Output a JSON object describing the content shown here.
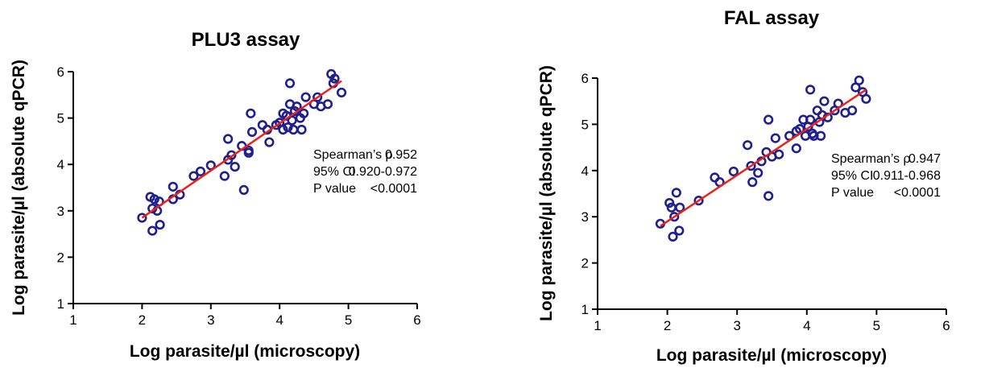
{
  "chart_data": [
    {
      "type": "scatter",
      "title": "PLU3 assay",
      "xlabel": "Log parasite/µl (microscopy)",
      "ylabel": "Log parasite/µl (absolute qPCR)",
      "xlim": [
        1,
        6
      ],
      "ylim": [
        1,
        6
      ],
      "xticks": [
        "1",
        "2",
        "3",
        "4",
        "5",
        "6"
      ],
      "yticks": [
        "1",
        "2",
        "3",
        "4",
        "5",
        "6"
      ],
      "grid": false,
      "colors": {
        "points": "#1f1f8f",
        "fit": "#e8231c"
      },
      "fit_line": {
        "x": [
          2.0,
          4.9
        ],
        "y": [
          2.85,
          5.8
        ]
      },
      "stats": [
        {
          "label": "Spearman’s ρ",
          "value": "0.952"
        },
        {
          "label": "95% CI",
          "value": "0.920-0.972"
        },
        {
          "label": "P value",
          "value": "<0.0001"
        }
      ],
      "points": [
        {
          "x": 2.0,
          "y": 2.85
        },
        {
          "x": 2.12,
          "y": 3.3
        },
        {
          "x": 2.18,
          "y": 3.25
        },
        {
          "x": 2.15,
          "y": 3.05
        },
        {
          "x": 2.25,
          "y": 3.2
        },
        {
          "x": 2.22,
          "y": 3.0
        },
        {
          "x": 2.15,
          "y": 2.57
        },
        {
          "x": 2.26,
          "y": 2.7
        },
        {
          "x": 2.45,
          "y": 3.52
        },
        {
          "x": 2.45,
          "y": 3.25
        },
        {
          "x": 2.55,
          "y": 3.35
        },
        {
          "x": 2.75,
          "y": 3.75
        },
        {
          "x": 2.85,
          "y": 3.85
        },
        {
          "x": 3.0,
          "y": 3.98
        },
        {
          "x": 3.2,
          "y": 3.75
        },
        {
          "x": 3.25,
          "y": 4.1
        },
        {
          "x": 3.25,
          "y": 4.55
        },
        {
          "x": 3.3,
          "y": 4.2
        },
        {
          "x": 3.35,
          "y": 3.95
        },
        {
          "x": 3.45,
          "y": 4.4
        },
        {
          "x": 3.48,
          "y": 3.45
        },
        {
          "x": 3.55,
          "y": 4.3
        },
        {
          "x": 3.55,
          "y": 4.25
        },
        {
          "x": 3.58,
          "y": 5.1
        },
        {
          "x": 3.6,
          "y": 4.7
        },
        {
          "x": 3.75,
          "y": 4.85
        },
        {
          "x": 3.82,
          "y": 4.75
        },
        {
          "x": 3.85,
          "y": 4.48
        },
        {
          "x": 3.95,
          "y": 4.85
        },
        {
          "x": 4.0,
          "y": 4.9
        },
        {
          "x": 4.05,
          "y": 5.1
        },
        {
          "x": 4.05,
          "y": 4.75
        },
        {
          "x": 4.1,
          "y": 5.05
        },
        {
          "x": 4.12,
          "y": 4.8
        },
        {
          "x": 4.15,
          "y": 5.75
        },
        {
          "x": 4.15,
          "y": 5.3
        },
        {
          "x": 4.18,
          "y": 4.95
        },
        {
          "x": 4.2,
          "y": 4.75
        },
        {
          "x": 4.22,
          "y": 5.15
        },
        {
          "x": 4.25,
          "y": 5.25
        },
        {
          "x": 4.3,
          "y": 5.0
        },
        {
          "x": 4.32,
          "y": 4.75
        },
        {
          "x": 4.35,
          "y": 5.1
        },
        {
          "x": 4.38,
          "y": 5.45
        },
        {
          "x": 4.5,
          "y": 5.3
        },
        {
          "x": 4.55,
          "y": 5.45
        },
        {
          "x": 4.6,
          "y": 5.25
        },
        {
          "x": 4.7,
          "y": 5.3
        },
        {
          "x": 4.75,
          "y": 5.95
        },
        {
          "x": 4.78,
          "y": 5.75
        },
        {
          "x": 4.8,
          "y": 5.85
        },
        {
          "x": 4.9,
          "y": 5.55
        }
      ]
    },
    {
      "type": "scatter",
      "title": "FAL assay",
      "xlabel": "Log parasite/µl (microscopy)",
      "ylabel": "Log parasite/µl (absolute qPCR)",
      "xlim": [
        1,
        6
      ],
      "ylim": [
        1,
        6
      ],
      "xticks": [
        "1",
        "2",
        "3",
        "4",
        "5",
        "6"
      ],
      "yticks": [
        "1",
        "2",
        "3",
        "4",
        "5",
        "6"
      ],
      "grid": false,
      "colors": {
        "points": "#1f1f8f",
        "fit": "#e8231c"
      },
      "fit_line": {
        "x": [
          1.9,
          4.85
        ],
        "y": [
          2.8,
          5.75
        ]
      },
      "stats": [
        {
          "label": "Spearman’s ρ",
          "value": "0.947"
        },
        {
          "label": "95% CI",
          "value": "0.911-0.968"
        },
        {
          "label": "P value",
          "value": "<0.0001"
        }
      ],
      "points": [
        {
          "x": 1.9,
          "y": 2.85
        },
        {
          "x": 2.03,
          "y": 3.3
        },
        {
          "x": 2.06,
          "y": 3.2
        },
        {
          "x": 2.1,
          "y": 3.0
        },
        {
          "x": 2.13,
          "y": 3.52
        },
        {
          "x": 2.18,
          "y": 3.2
        },
        {
          "x": 2.08,
          "y": 2.57
        },
        {
          "x": 2.17,
          "y": 2.7
        },
        {
          "x": 2.45,
          "y": 3.35
        },
        {
          "x": 2.68,
          "y": 3.85
        },
        {
          "x": 2.75,
          "y": 3.75
        },
        {
          "x": 2.95,
          "y": 3.98
        },
        {
          "x": 3.15,
          "y": 4.55
        },
        {
          "x": 3.2,
          "y": 4.1
        },
        {
          "x": 3.22,
          "y": 3.75
        },
        {
          "x": 3.3,
          "y": 3.95
        },
        {
          "x": 3.35,
          "y": 4.2
        },
        {
          "x": 3.42,
          "y": 4.4
        },
        {
          "x": 3.45,
          "y": 3.45
        },
        {
          "x": 3.45,
          "y": 5.1
        },
        {
          "x": 3.5,
          "y": 4.3
        },
        {
          "x": 3.55,
          "y": 4.7
        },
        {
          "x": 3.6,
          "y": 4.35
        },
        {
          "x": 3.75,
          "y": 4.75
        },
        {
          "x": 3.85,
          "y": 4.85
        },
        {
          "x": 3.85,
          "y": 4.48
        },
        {
          "x": 3.9,
          "y": 4.9
        },
        {
          "x": 3.95,
          "y": 5.1
        },
        {
          "x": 3.98,
          "y": 4.75
        },
        {
          "x": 4.02,
          "y": 4.95
        },
        {
          "x": 4.05,
          "y": 5.75
        },
        {
          "x": 4.05,
          "y": 5.1
        },
        {
          "x": 4.08,
          "y": 4.8
        },
        {
          "x": 4.1,
          "y": 4.75
        },
        {
          "x": 4.15,
          "y": 5.3
        },
        {
          "x": 4.18,
          "y": 5.05
        },
        {
          "x": 4.2,
          "y": 4.75
        },
        {
          "x": 4.22,
          "y": 5.2
        },
        {
          "x": 4.25,
          "y": 5.5
        },
        {
          "x": 4.3,
          "y": 5.15
        },
        {
          "x": 4.4,
          "y": 5.3
        },
        {
          "x": 4.45,
          "y": 5.45
        },
        {
          "x": 4.55,
          "y": 5.25
        },
        {
          "x": 4.65,
          "y": 5.3
        },
        {
          "x": 4.7,
          "y": 5.8
        },
        {
          "x": 4.75,
          "y": 5.95
        },
        {
          "x": 4.8,
          "y": 5.7
        },
        {
          "x": 4.85,
          "y": 5.55
        }
      ]
    }
  ]
}
